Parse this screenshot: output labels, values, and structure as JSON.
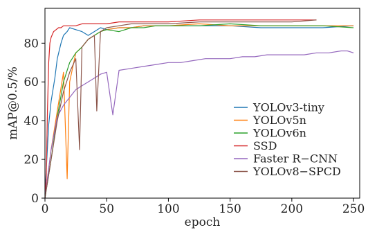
{
  "chart_data": {
    "type": "line",
    "xlabel": "epoch",
    "ylabel": "mAP@0.5/%",
    "xlim": [
      0,
      255
    ],
    "ylim": [
      0,
      98
    ],
    "xticks": [
      0,
      50,
      100,
      150,
      200,
      250
    ],
    "yticks": [
      0,
      20,
      40,
      60,
      80
    ],
    "legend_position": "lower-right",
    "grid": false,
    "series": [
      {
        "name": "YOLOv3-tiny",
        "color": "#1f77b4",
        "x": [
          0,
          3,
          5,
          8,
          10,
          13,
          15,
          18,
          20,
          25,
          30,
          35,
          40,
          45,
          50,
          60,
          70,
          80,
          90,
          100,
          125,
          150,
          175,
          200,
          225,
          250
        ],
        "y": [
          2,
          38,
          50,
          62,
          72,
          80,
          84,
          86,
          88,
          87,
          86,
          84,
          86,
          88,
          87,
          88,
          88,
          89,
          89,
          89,
          89,
          89,
          88,
          88,
          88,
          89
        ]
      },
      {
        "name": "YOLOv5n",
        "color": "#ff7f0e",
        "x": [
          0,
          5,
          10,
          15,
          18,
          20,
          25,
          30,
          35,
          40,
          45,
          50,
          60,
          70,
          80,
          90,
          100,
          125,
          150,
          175,
          200,
          225,
          250
        ],
        "y": [
          0,
          25,
          45,
          65,
          10,
          60,
          75,
          78,
          82,
          84,
          86,
          87,
          88,
          88,
          89,
          89,
          89,
          90,
          89,
          89,
          89,
          89,
          89
        ]
      },
      {
        "name": "YOLOv6n",
        "color": "#2ca02c",
        "x": [
          0,
          5,
          10,
          15,
          20,
          25,
          30,
          35,
          40,
          45,
          50,
          60,
          70,
          80,
          90,
          100,
          125,
          150,
          175,
          200,
          225,
          250
        ],
        "y": [
          0,
          20,
          42,
          60,
          70,
          75,
          78,
          82,
          84,
          86,
          87,
          86,
          88,
          88,
          89,
          89,
          89,
          90,
          89,
          89,
          89,
          88
        ]
      },
      {
        "name": "SSD",
        "color": "#d62728",
        "x": [
          0,
          1,
          2,
          3,
          4,
          5,
          7,
          9,
          11,
          13,
          15,
          20,
          25,
          30,
          40,
          50,
          60,
          75,
          100,
          125,
          150,
          175,
          200,
          220
        ],
        "y": [
          0,
          10,
          45,
          70,
          80,
          83,
          86,
          87,
          88,
          88,
          89,
          89,
          89,
          90,
          90,
          90,
          91,
          91,
          91,
          92,
          92,
          92,
          92,
          92
        ]
      },
      {
        "name": "Faster R−CNN",
        "color": "#9467bd",
        "x": [
          0,
          5,
          10,
          15,
          20,
          25,
          30,
          35,
          40,
          45,
          50,
          55,
          60,
          70,
          80,
          90,
          100,
          110,
          120,
          130,
          140,
          150,
          160,
          170,
          180,
          190,
          200,
          210,
          220,
          230,
          240,
          245,
          250
        ],
        "y": [
          0,
          25,
          42,
          48,
          52,
          56,
          58,
          60,
          62,
          64,
          65,
          43,
          66,
          67,
          68,
          69,
          70,
          70,
          71,
          72,
          72,
          72,
          73,
          73,
          74,
          74,
          74,
          74,
          75,
          75,
          76,
          76,
          75
        ]
      },
      {
        "name": "YOLOv8−SPCD",
        "color": "#8c564b",
        "x": [
          0,
          5,
          10,
          15,
          20,
          25,
          28,
          30,
          35,
          40,
          42,
          45,
          50,
          60,
          70,
          80,
          90,
          100,
          125,
          150,
          175,
          200,
          220
        ],
        "y": [
          0,
          20,
          40,
          55,
          65,
          72,
          25,
          78,
          82,
          84,
          45,
          86,
          88,
          89,
          90,
          90,
          90,
          90,
          91,
          91,
          91,
          91,
          92
        ]
      }
    ]
  }
}
